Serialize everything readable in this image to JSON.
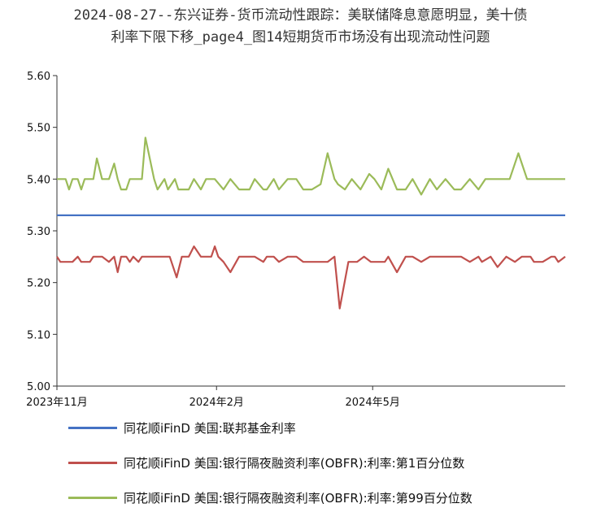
{
  "title": {
    "line1": "2024-08-27--东兴证券-货币流动性跟踪：美联储降息意愿明显，美十债",
    "line2": "利率下限下移_page4_图14短期货币市场没有出现流动性问题"
  },
  "chart_data": {
    "type": "line",
    "ylim": [
      5.0,
      5.6
    ],
    "yticks": [
      "5.00",
      "5.10",
      "5.20",
      "5.30",
      "5.40",
      "5.50",
      "5.60"
    ],
    "xlim": [
      "2023-11-01",
      "2024-08-20"
    ],
    "xticks": [
      {
        "date": "2023-11-01",
        "label": "2023年11月"
      },
      {
        "date": "2024-02-01",
        "label": "2024年2月"
      },
      {
        "date": "2024-05-01",
        "label": "2024年5月"
      }
    ],
    "series": [
      {
        "name": "同花顺iFinD 美国:联邦基金利率",
        "color": "#4472C4",
        "x": [
          "2023-11-01",
          "2024-08-20"
        ],
        "y": [
          5.33,
          5.33
        ]
      },
      {
        "name": "同花顺iFinD 美国:银行隔夜融资利率(OBFR):利率:第1百分位数",
        "color": "#C0504D",
        "x": [
          "2023-11-01",
          "2023-11-03",
          "2023-11-06",
          "2023-11-10",
          "2023-11-13",
          "2023-11-15",
          "2023-11-20",
          "2023-11-22",
          "2023-11-27",
          "2023-12-01",
          "2023-12-04",
          "2023-12-06",
          "2023-12-08",
          "2023-12-11",
          "2023-12-13",
          "2023-12-15",
          "2023-12-18",
          "2023-12-20",
          "2023-12-27",
          "2023-12-29",
          "2024-01-02",
          "2024-01-05",
          "2024-01-09",
          "2024-01-12",
          "2024-01-16",
          "2024-01-19",
          "2024-01-23",
          "2024-01-26",
          "2024-01-29",
          "2024-01-31",
          "2024-02-02",
          "2024-02-05",
          "2024-02-09",
          "2024-02-14",
          "2024-02-20",
          "2024-02-23",
          "2024-02-28",
          "2024-03-01",
          "2024-03-05",
          "2024-03-08",
          "2024-03-13",
          "2024-03-18",
          "2024-03-22",
          "2024-03-27",
          "2024-04-01",
          "2024-04-03",
          "2024-04-05",
          "2024-04-09",
          "2024-04-12",
          "2024-04-17",
          "2024-04-22",
          "2024-04-26",
          "2024-04-30",
          "2024-05-03",
          "2024-05-08",
          "2024-05-10",
          "2024-05-15",
          "2024-05-20",
          "2024-05-24",
          "2024-05-29",
          "2024-06-03",
          "2024-06-07",
          "2024-06-12",
          "2024-06-17",
          "2024-06-21",
          "2024-06-26",
          "2024-07-01",
          "2024-07-03",
          "2024-07-08",
          "2024-07-12",
          "2024-07-17",
          "2024-07-22",
          "2024-07-26",
          "2024-07-31",
          "2024-08-02",
          "2024-08-07",
          "2024-08-12",
          "2024-08-14",
          "2024-08-16",
          "2024-08-20"
        ],
        "y": [
          5.25,
          5.24,
          5.24,
          5.24,
          5.25,
          5.24,
          5.24,
          5.25,
          5.25,
          5.24,
          5.25,
          5.22,
          5.25,
          5.25,
          5.24,
          5.25,
          5.24,
          5.25,
          5.25,
          5.25,
          5.25,
          5.25,
          5.21,
          5.25,
          5.25,
          5.27,
          5.25,
          5.25,
          5.25,
          5.27,
          5.25,
          5.24,
          5.22,
          5.25,
          5.25,
          5.25,
          5.24,
          5.25,
          5.25,
          5.24,
          5.25,
          5.25,
          5.24,
          5.24,
          5.24,
          5.24,
          5.24,
          5.25,
          5.15,
          5.24,
          5.24,
          5.25,
          5.24,
          5.24,
          5.24,
          5.25,
          5.22,
          5.25,
          5.25,
          5.24,
          5.25,
          5.25,
          5.25,
          5.25,
          5.25,
          5.24,
          5.25,
          5.24,
          5.25,
          5.23,
          5.25,
          5.24,
          5.25,
          5.25,
          5.24,
          5.24,
          5.25,
          5.25,
          5.24,
          5.25
        ]
      },
      {
        "name": "同花顺iFinD 美国:银行隔夜融资利率(OBFR):利率:第99百分位数",
        "color": "#9BBB59",
        "x": [
          "2023-11-01",
          "2023-11-03",
          "2023-11-06",
          "2023-11-08",
          "2023-11-10",
          "2023-11-13",
          "2023-11-15",
          "2023-11-17",
          "2023-11-20",
          "2023-11-22",
          "2023-11-24",
          "2023-11-27",
          "2023-11-29",
          "2023-12-01",
          "2023-12-04",
          "2023-12-06",
          "2023-12-08",
          "2023-12-11",
          "2023-12-13",
          "2023-12-15",
          "2023-12-18",
          "2023-12-20",
          "2023-12-22",
          "2023-12-27",
          "2023-12-29",
          "2024-01-02",
          "2024-01-04",
          "2024-01-08",
          "2024-01-10",
          "2024-01-12",
          "2024-01-16",
          "2024-01-19",
          "2024-01-23",
          "2024-01-26",
          "2024-01-31",
          "2024-02-05",
          "2024-02-09",
          "2024-02-14",
          "2024-02-20",
          "2024-02-23",
          "2024-02-28",
          "2024-03-01",
          "2024-03-05",
          "2024-03-08",
          "2024-03-13",
          "2024-03-18",
          "2024-03-22",
          "2024-03-27",
          "2024-04-01",
          "2024-04-05",
          "2024-04-09",
          "2024-04-11",
          "2024-04-15",
          "2024-04-19",
          "2024-04-24",
          "2024-04-29",
          "2024-05-02",
          "2024-05-06",
          "2024-05-10",
          "2024-05-15",
          "2024-05-20",
          "2024-05-24",
          "2024-05-29",
          "2024-06-03",
          "2024-06-07",
          "2024-06-12",
          "2024-06-17",
          "2024-06-21",
          "2024-06-26",
          "2024-07-01",
          "2024-07-05",
          "2024-07-10",
          "2024-07-15",
          "2024-07-19",
          "2024-07-24",
          "2024-07-29",
          "2024-08-02",
          "2024-08-07",
          "2024-08-12",
          "2024-08-16",
          "2024-08-20"
        ],
        "y": [
          5.4,
          5.4,
          5.4,
          5.38,
          5.4,
          5.4,
          5.38,
          5.4,
          5.4,
          5.4,
          5.44,
          5.4,
          5.4,
          5.4,
          5.43,
          5.4,
          5.38,
          5.38,
          5.4,
          5.4,
          5.4,
          5.4,
          5.48,
          5.4,
          5.38,
          5.4,
          5.38,
          5.4,
          5.38,
          5.38,
          5.38,
          5.4,
          5.38,
          5.4,
          5.4,
          5.38,
          5.4,
          5.38,
          5.38,
          5.4,
          5.38,
          5.38,
          5.4,
          5.38,
          5.4,
          5.4,
          5.38,
          5.38,
          5.39,
          5.45,
          5.4,
          5.39,
          5.38,
          5.4,
          5.38,
          5.41,
          5.4,
          5.38,
          5.42,
          5.38,
          5.38,
          5.4,
          5.37,
          5.4,
          5.38,
          5.4,
          5.38,
          5.38,
          5.4,
          5.38,
          5.4,
          5.4,
          5.4,
          5.4,
          5.45,
          5.4,
          5.4,
          5.4,
          5.4,
          5.4,
          5.4
        ]
      }
    ]
  }
}
